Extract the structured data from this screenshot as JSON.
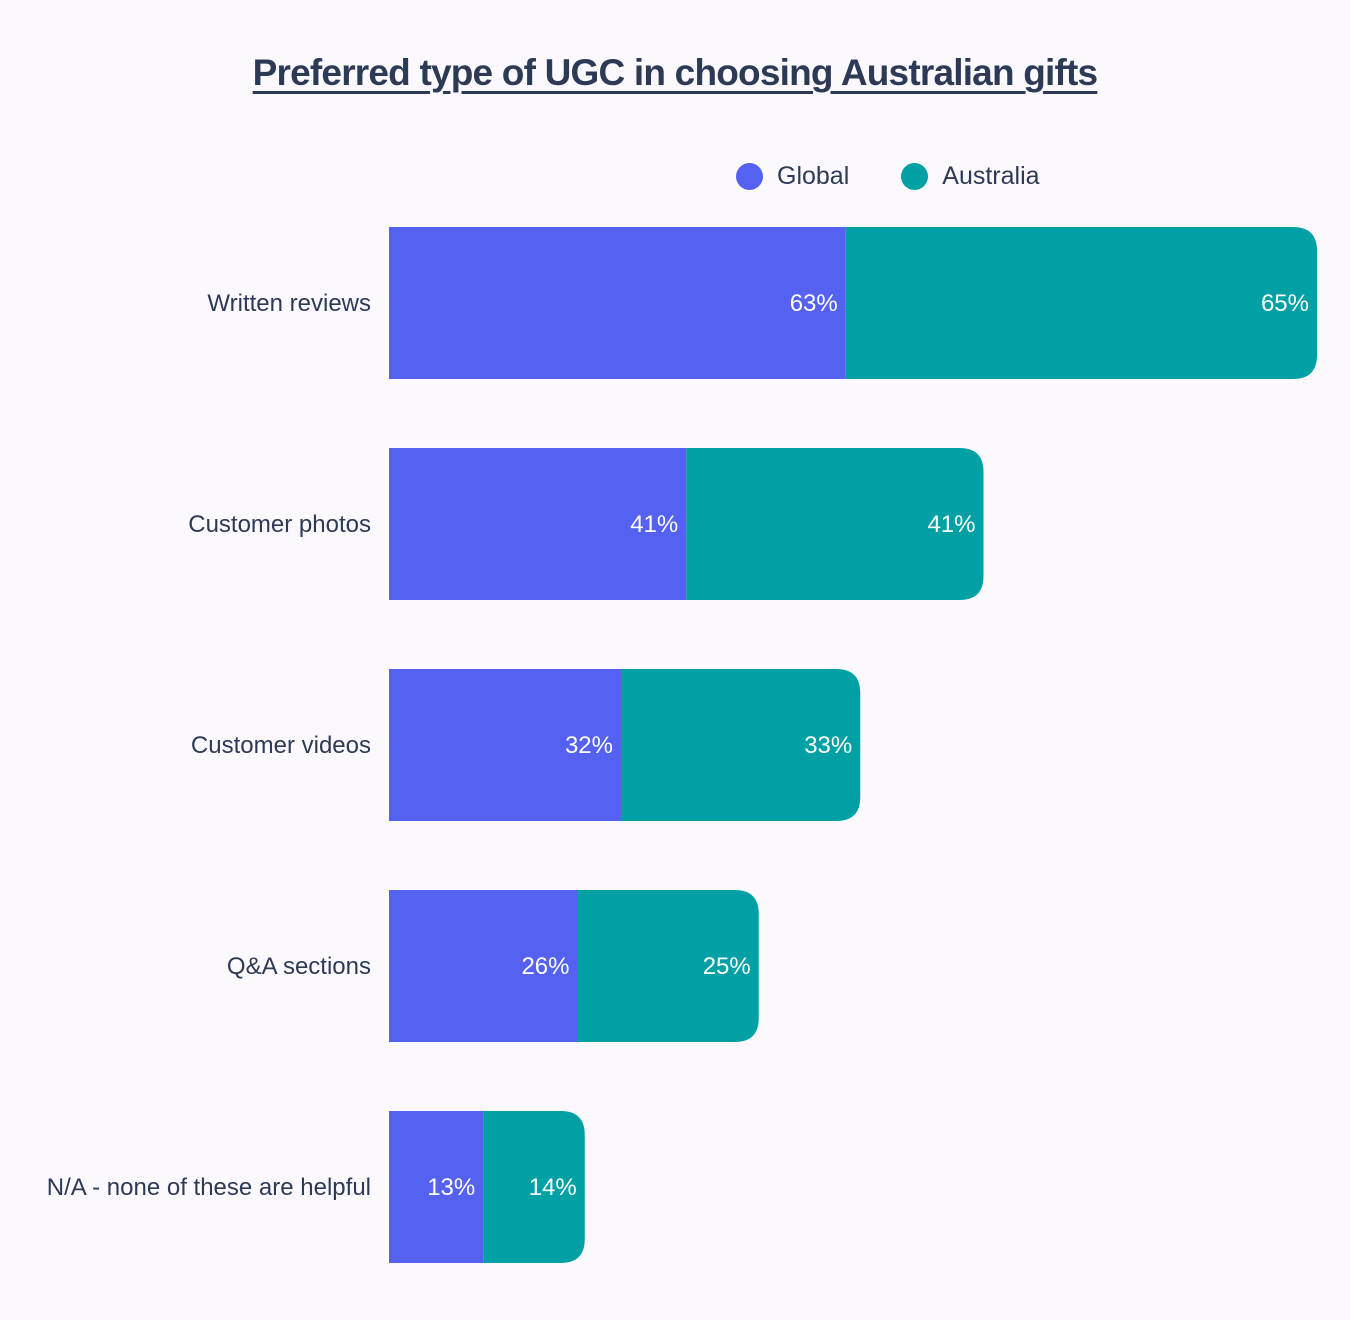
{
  "chart_data": {
    "type": "bar",
    "orientation": "horizontal",
    "stacked": true,
    "title": "Preferred type of UGC in choosing Australian gifts",
    "categories": [
      "Written reviews",
      "Customer photos",
      "Customer videos",
      "Q&A sections",
      "N/A - none of these are helpful"
    ],
    "series": [
      {
        "name": "Global",
        "color": "#5561f0",
        "values": [
          63,
          41,
          32,
          26,
          13
        ],
        "labels": [
          "63%",
          "41%",
          "32%",
          "26%",
          "13%"
        ]
      },
      {
        "name": "Australia",
        "color": "#00a0a4",
        "values": [
          65,
          41,
          33,
          25,
          14
        ],
        "labels": [
          "65%",
          "41%",
          "33%",
          "25%",
          "14%"
        ]
      }
    ],
    "legend_position": "top-right",
    "xlabel": "",
    "ylabel": "",
    "grid": false
  }
}
